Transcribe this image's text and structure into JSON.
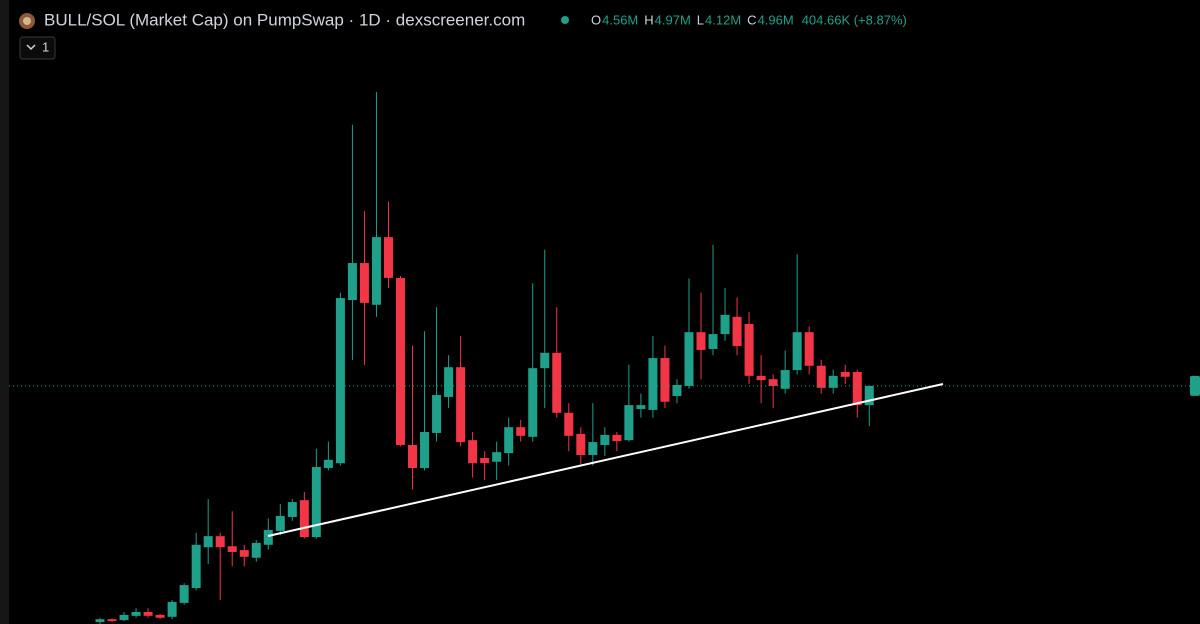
{
  "chart_data": {
    "type": "candlestick",
    "title": "BULL/SOL (Market Cap) on PumpSwap · 1D · dexscreener.com",
    "interval_button": "1",
    "ohlc_legend": [
      {
        "label": "O",
        "value": "4.56M"
      },
      {
        "label": "H",
        "value": "4.97M"
      },
      {
        "label": "L",
        "value": "4.12M"
      },
      {
        "label": "C",
        "value": "4.96M"
      }
    ],
    "change": "404.66K (+8.87%)",
    "up_color": "#1fa08b",
    "down_color": "#f23645",
    "ylim": [
      0,
      11.75
    ],
    "open": [
      0.04,
      0.1,
      0.08,
      0.17,
      0.25,
      0.19,
      0.15,
      0.44,
      0.75,
      1.6,
      1.83,
      1.62,
      1.54,
      1.38,
      1.65,
      1.94,
      2.23,
      2.58,
      1.81,
      3.25,
      3.35,
      6.75,
      7.52,
      6.65,
      8.06,
      7.21,
      3.73,
      3.25,
      3.98,
      4.73,
      5.35,
      3.83,
      3.46,
      3.38,
      3.56,
      4.1,
      3.9,
      5.33,
      5.65,
      4.4,
      3.96,
      3.52,
      3.73,
      3.94,
      3.83,
      4.48,
      4.46,
      5.54,
      4.75,
      4.96,
      6.08,
      5.73,
      6.04,
      6.4,
      6.25,
      5.17,
      5.1,
      4.9,
      5.29,
      6.08,
      5.38,
      4.92,
      5.25,
      5.25,
      4.56
    ],
    "high": [
      0.13,
      0.12,
      0.25,
      0.33,
      0.33,
      0.21,
      0.5,
      0.85,
      1.9,
      2.6,
      1.9,
      2.35,
      1.65,
      1.75,
      2.2,
      2.5,
      2.6,
      2.75,
      3.65,
      3.8,
      6.9,
      10.4,
      8.6,
      11.08,
      8.8,
      7.25,
      5.8,
      6.1,
      6.6,
      5.6,
      6.0,
      4.0,
      3.6,
      3.8,
      4.3,
      4.25,
      7.1,
      7.8,
      6.6,
      4.6,
      4.1,
      4.6,
      4.1,
      4.0,
      5.4,
      4.8,
      6.0,
      5.8,
      5.1,
      7.2,
      6.9,
      7.9,
      7.0,
      6.8,
      6.5,
      5.6,
      5.2,
      5.7,
      7.7,
      6.2,
      5.5,
      5.3,
      5.4,
      5.3,
      4.97
    ],
    "low": [
      0.0,
      0.04,
      0.06,
      0.13,
      0.13,
      0.1,
      0.1,
      0.4,
      0.7,
      1.25,
      0.5,
      1.2,
      1.2,
      1.3,
      1.55,
      1.85,
      2.15,
      1.78,
      1.78,
      3.2,
      3.3,
      5.5,
      5.4,
      6.4,
      7.0,
      3.7,
      2.8,
      3.2,
      3.8,
      4.5,
      3.7,
      3.05,
      3.0,
      3.0,
      3.3,
      3.8,
      3.8,
      4.5,
      4.3,
      3.6,
      3.3,
      3.3,
      3.5,
      3.6,
      3.8,
      4.3,
      4.3,
      4.5,
      4.6,
      4.9,
      5.1,
      5.6,
      5.9,
      5.6,
      5.0,
      4.6,
      4.5,
      4.8,
      5.2,
      5.2,
      4.8,
      4.8,
      5.0,
      4.3,
      4.12
    ],
    "close": [
      0.1,
      0.06,
      0.19,
      0.25,
      0.17,
      0.13,
      0.46,
      0.81,
      1.65,
      1.83,
      1.6,
      1.5,
      1.4,
      1.69,
      1.96,
      2.25,
      2.54,
      1.81,
      3.27,
      3.42,
      6.79,
      7.52,
      6.69,
      8.06,
      7.21,
      3.73,
      3.25,
      4.0,
      4.77,
      5.35,
      3.79,
      3.35,
      3.35,
      3.58,
      4.1,
      3.92,
      5.33,
      5.65,
      4.4,
      3.92,
      3.52,
      3.79,
      3.94,
      3.81,
      4.56,
      4.56,
      5.54,
      4.63,
      4.98,
      6.08,
      5.71,
      6.04,
      6.44,
      5.79,
      5.17,
      5.08,
      4.96,
      5.29,
      6.08,
      5.38,
      4.92,
      5.17,
      5.15,
      4.56,
      4.96
    ]
  }
}
